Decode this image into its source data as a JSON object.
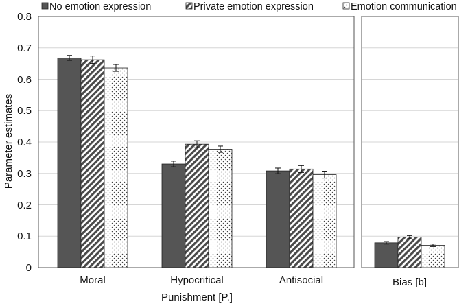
{
  "chart_data": {
    "type": "bar",
    "ylabel": "Parameter estimates",
    "ylim": [
      0,
      0.8
    ],
    "yticks": [
      "0",
      "0.1",
      "0.2",
      "0.3",
      "0.4",
      "0.5",
      "0.6",
      "0.7",
      "0.8"
    ],
    "grid": true,
    "legend_position": "top",
    "series": [
      {
        "name": "No emotion expression",
        "pattern": "solid",
        "color": "#555555"
      },
      {
        "name": "Private emotion expression",
        "pattern": "diagonal-stripes",
        "color": "#555555"
      },
      {
        "name": "Emotion communication",
        "pattern": "dots",
        "color": "#555555"
      }
    ],
    "panels": [
      {
        "xlabel": "Punishment [P.]",
        "categories": [
          "Moral",
          "Hypocritical",
          "Antisocial"
        ],
        "values": [
          [
            0.668,
            0.662,
            0.636
          ],
          [
            0.33,
            0.393,
            0.377
          ],
          [
            0.308,
            0.314,
            0.296
          ]
        ],
        "errors": [
          [
            0.008,
            0.012,
            0.011
          ],
          [
            0.009,
            0.011,
            0.01
          ],
          [
            0.009,
            0.011,
            0.011
          ]
        ]
      },
      {
        "xlabel": "",
        "categories": [
          "Bias [b]"
        ],
        "values": [
          [
            0.079,
            0.097,
            0.071
          ]
        ],
        "errors": [
          [
            0.004,
            0.005,
            0.004
          ]
        ]
      }
    ]
  }
}
